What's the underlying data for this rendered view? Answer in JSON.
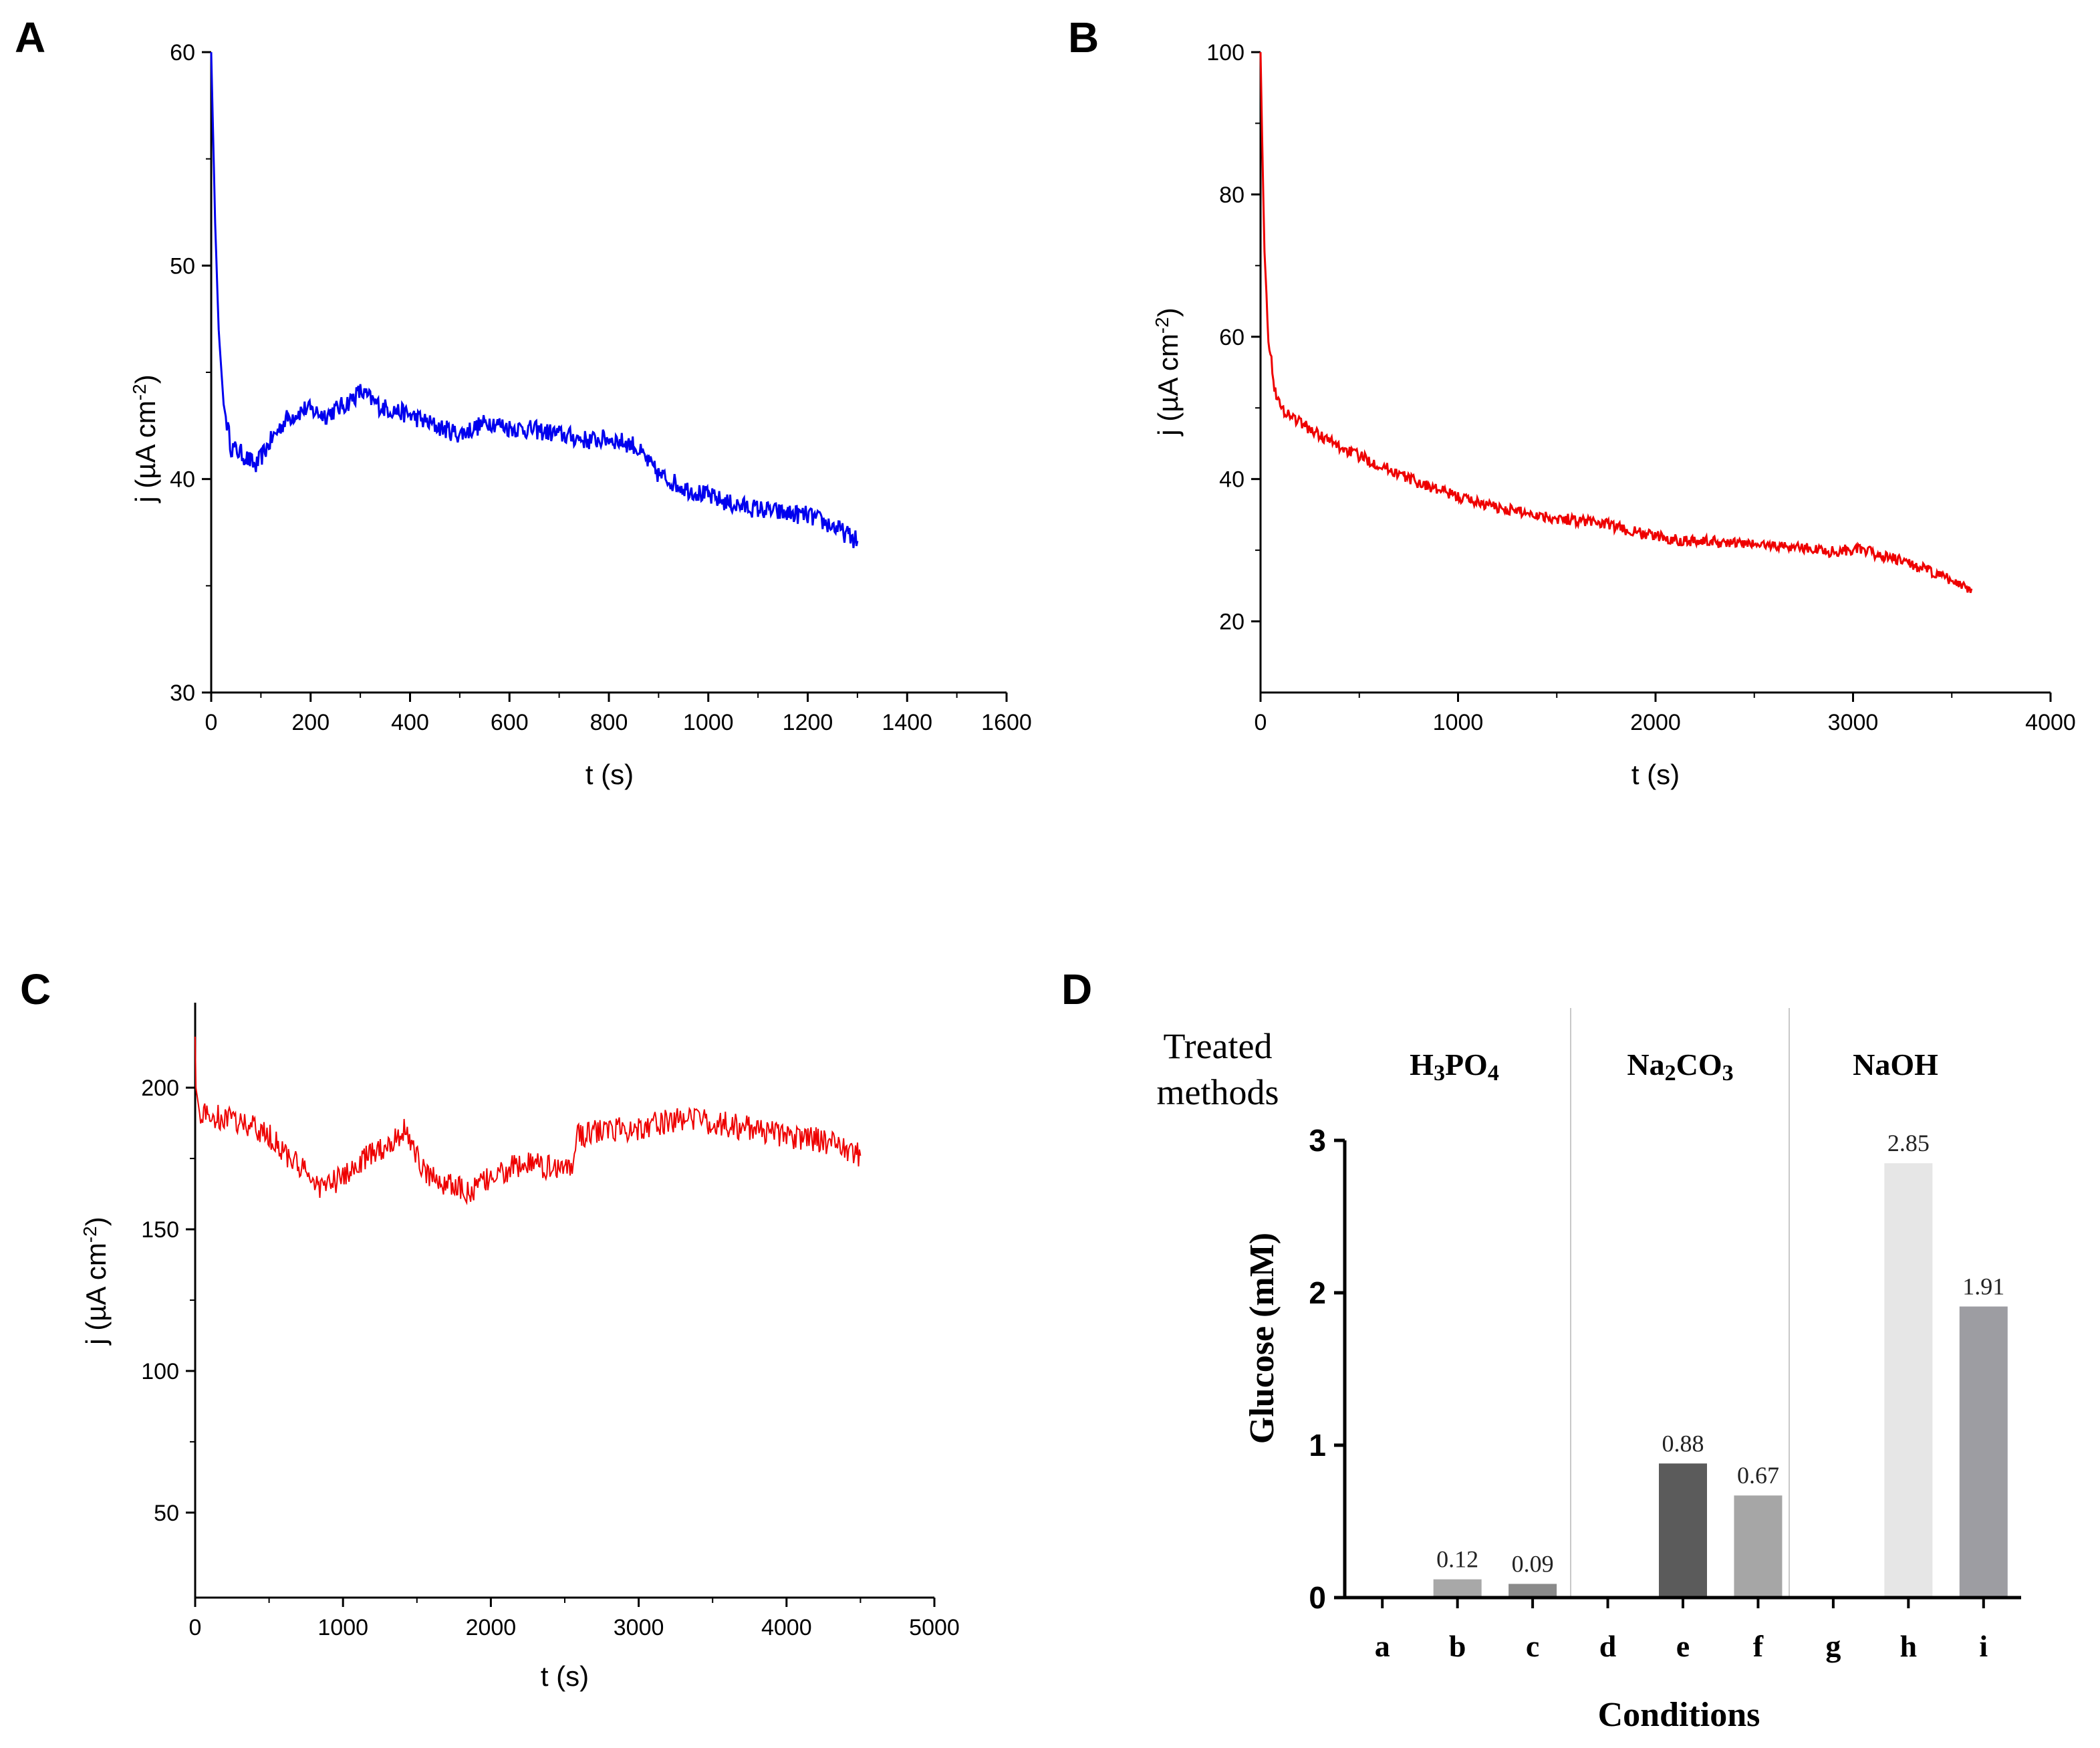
{
  "panels": [
    "A",
    "B",
    "C",
    "D"
  ],
  "chart_data": [
    {
      "id": "A",
      "type": "line",
      "color": "#0000ee",
      "xlabel": "t (s)",
      "ylabel": "j (µA cm",
      "ylabel_sup": "-2",
      "ylabel_tail": ")",
      "xlim": [
        0,
        1600
      ],
      "ylim": [
        30,
        60
      ],
      "xticks": [
        0,
        200,
        400,
        600,
        800,
        1000,
        1200,
        1400,
        1600
      ],
      "yticks": [
        30,
        40,
        50,
        60
      ],
      "noise": 0.45,
      "series": [
        {
          "name": "A",
          "x": [
            0,
            3,
            8,
            15,
            25,
            40,
            60,
            90,
            120,
            150,
            190,
            230,
            270,
            300,
            340,
            400,
            450,
            500,
            560,
            600,
            650,
            700,
            760,
            800,
            850,
            900,
            950,
            1000,
            1050,
            1100,
            1150,
            1200,
            1250,
            1300
          ],
          "y": [
            60,
            57,
            52,
            47,
            43.5,
            41.5,
            41.2,
            40.6,
            41.8,
            42.8,
            43.3,
            43,
            43.5,
            44.1,
            43.4,
            43,
            42.5,
            42.1,
            42.7,
            42.4,
            42.3,
            42.1,
            41.8,
            41.9,
            41.6,
            40.2,
            39.6,
            39.2,
            38.8,
            38.6,
            38.4,
            38.3,
            37.8,
            37.1
          ]
        }
      ]
    },
    {
      "id": "B",
      "type": "line",
      "color": "#ee0000",
      "xlabel": "t (s)",
      "ylabel": "j (µA cm",
      "ylabel_sup": "-2",
      "ylabel_tail": ")",
      "xlim": [
        0,
        4000
      ],
      "ylim": [
        10,
        100
      ],
      "xticks": [
        0,
        1000,
        2000,
        3000,
        4000
      ],
      "yticks": [
        20,
        40,
        60,
        80,
        100
      ],
      "noise": 0.8,
      "series": [
        {
          "name": "B",
          "x": [
            0,
            8,
            20,
            40,
            70,
            100,
            150,
            250,
            400,
            600,
            800,
            1000,
            1200,
            1500,
            1700,
            1900,
            2100,
            2400,
            2700,
            2900,
            3000,
            3100,
            3300,
            3450,
            3600
          ],
          "y": [
            100,
            88,
            72,
            60,
            53,
            50,
            49,
            47,
            44.5,
            42,
            39.5,
            37.5,
            36,
            34.5,
            34,
            32.5,
            31.5,
            31,
            30.5,
            29.8,
            30.2,
            29.6,
            28,
            26.3,
            24.6
          ]
        }
      ]
    },
    {
      "id": "C",
      "type": "line",
      "color": "#ee0000",
      "xlabel": "t (s)",
      "ylabel": "j (µA cm",
      "ylabel_sup": "-2",
      "ylabel_tail": ")",
      "xlim": [
        0,
        5000
      ],
      "ylim": [
        20,
        230
      ],
      "xticks": [
        0,
        1000,
        2000,
        3000,
        4000,
        5000
      ],
      "yticks": [
        50,
        100,
        150,
        200
      ],
      "noise": 4.5,
      "series": [
        {
          "name": "C",
          "x": [
            0,
            5,
            30,
            100,
            300,
            500,
            700,
            850,
            1000,
            1150,
            1300,
            1420,
            1450,
            1550,
            1700,
            1850,
            2000,
            2200,
            2400,
            2550,
            2580,
            2800,
            3000,
            3200,
            3350,
            3600,
            3800,
            4000,
            4200,
            4400,
            4500
          ],
          "y": [
            218,
            200,
            191,
            190,
            188,
            183,
            172,
            165,
            168,
            175,
            180,
            185,
            182,
            170,
            166,
            163,
            168,
            173,
            172,
            172,
            183,
            185,
            186,
            188,
            189,
            187,
            185,
            183,
            182,
            179,
            176
          ]
        }
      ]
    },
    {
      "id": "D",
      "type": "bar",
      "xlabel": "Conditions",
      "ylabel": "Glucose (mM)",
      "ylim": [
        0,
        3
      ],
      "yticks": [
        0,
        1,
        2,
        3
      ],
      "categories": [
        "a",
        "b",
        "c",
        "d",
        "e",
        "f",
        "g",
        "h",
        "i"
      ],
      "values": [
        0,
        0.12,
        0.09,
        0,
        0.88,
        0.67,
        0,
        2.85,
        1.91
      ],
      "value_labels": [
        "",
        "0.12",
        "0.09",
        "",
        "0.88",
        "0.67",
        "",
        "2.85",
        "1.91"
      ],
      "bar_colors": [
        "#9a9a9a",
        "#a8a8a8",
        "#8a8a8a",
        "#9a9a9a",
        "#5b5b5b",
        "#a6a6a6",
        "#9a9a9a",
        "#e6e6e6",
        "#9d9da2"
      ],
      "header": [
        "Treated",
        "methods"
      ],
      "groups": [
        {
          "pre": "H",
          "s1": "3",
          "mid": "PO",
          "s2": "4",
          "post": ""
        },
        {
          "pre": "Na",
          "s1": "2",
          "mid": "CO",
          "s2": "3",
          "post": ""
        },
        {
          "pre": "NaOH",
          "s1": "",
          "mid": "",
          "s2": "",
          "post": ""
        }
      ]
    }
  ]
}
